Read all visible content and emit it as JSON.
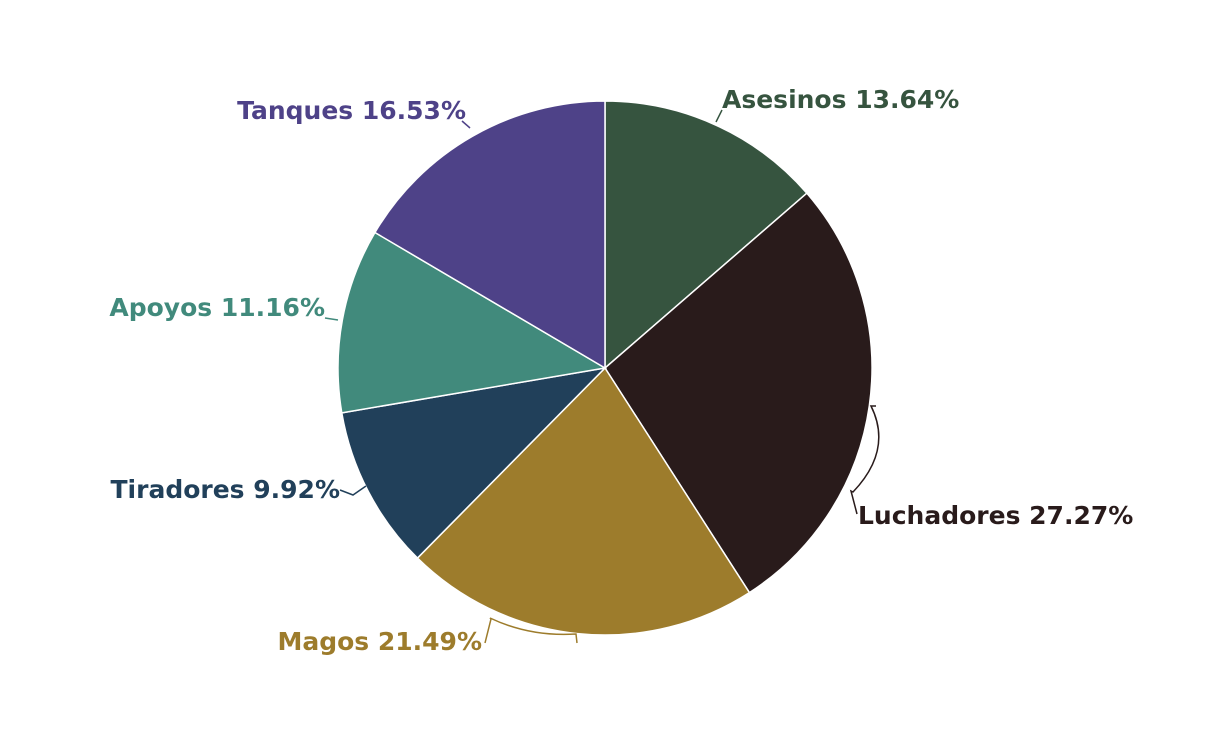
{
  "chart_data": {
    "type": "pie",
    "title": "",
    "legend": "none",
    "labels_show": "label and percent",
    "slices": [
      {
        "label": "Asesinos",
        "percent_text": "13.64%",
        "value": 13.64,
        "color": "#36543F"
      },
      {
        "label": "Luchadores",
        "percent_text": "27.27%",
        "value": 27.27,
        "color": "#291B1B"
      },
      {
        "label": "Magos",
        "percent_text": "21.49%",
        "value": 21.49,
        "color": "#9D7C2C"
      },
      {
        "label": "Tiradores",
        "percent_text": "9.92%",
        "value": 9.92,
        "color": "#21405A"
      },
      {
        "label": "Apoyos",
        "percent_text": "11.16%",
        "value": 11.16,
        "color": "#418A7C"
      },
      {
        "label": "Tanques",
        "percent_text": "16.53%",
        "value": 16.53,
        "color": "#4E4288"
      }
    ]
  }
}
